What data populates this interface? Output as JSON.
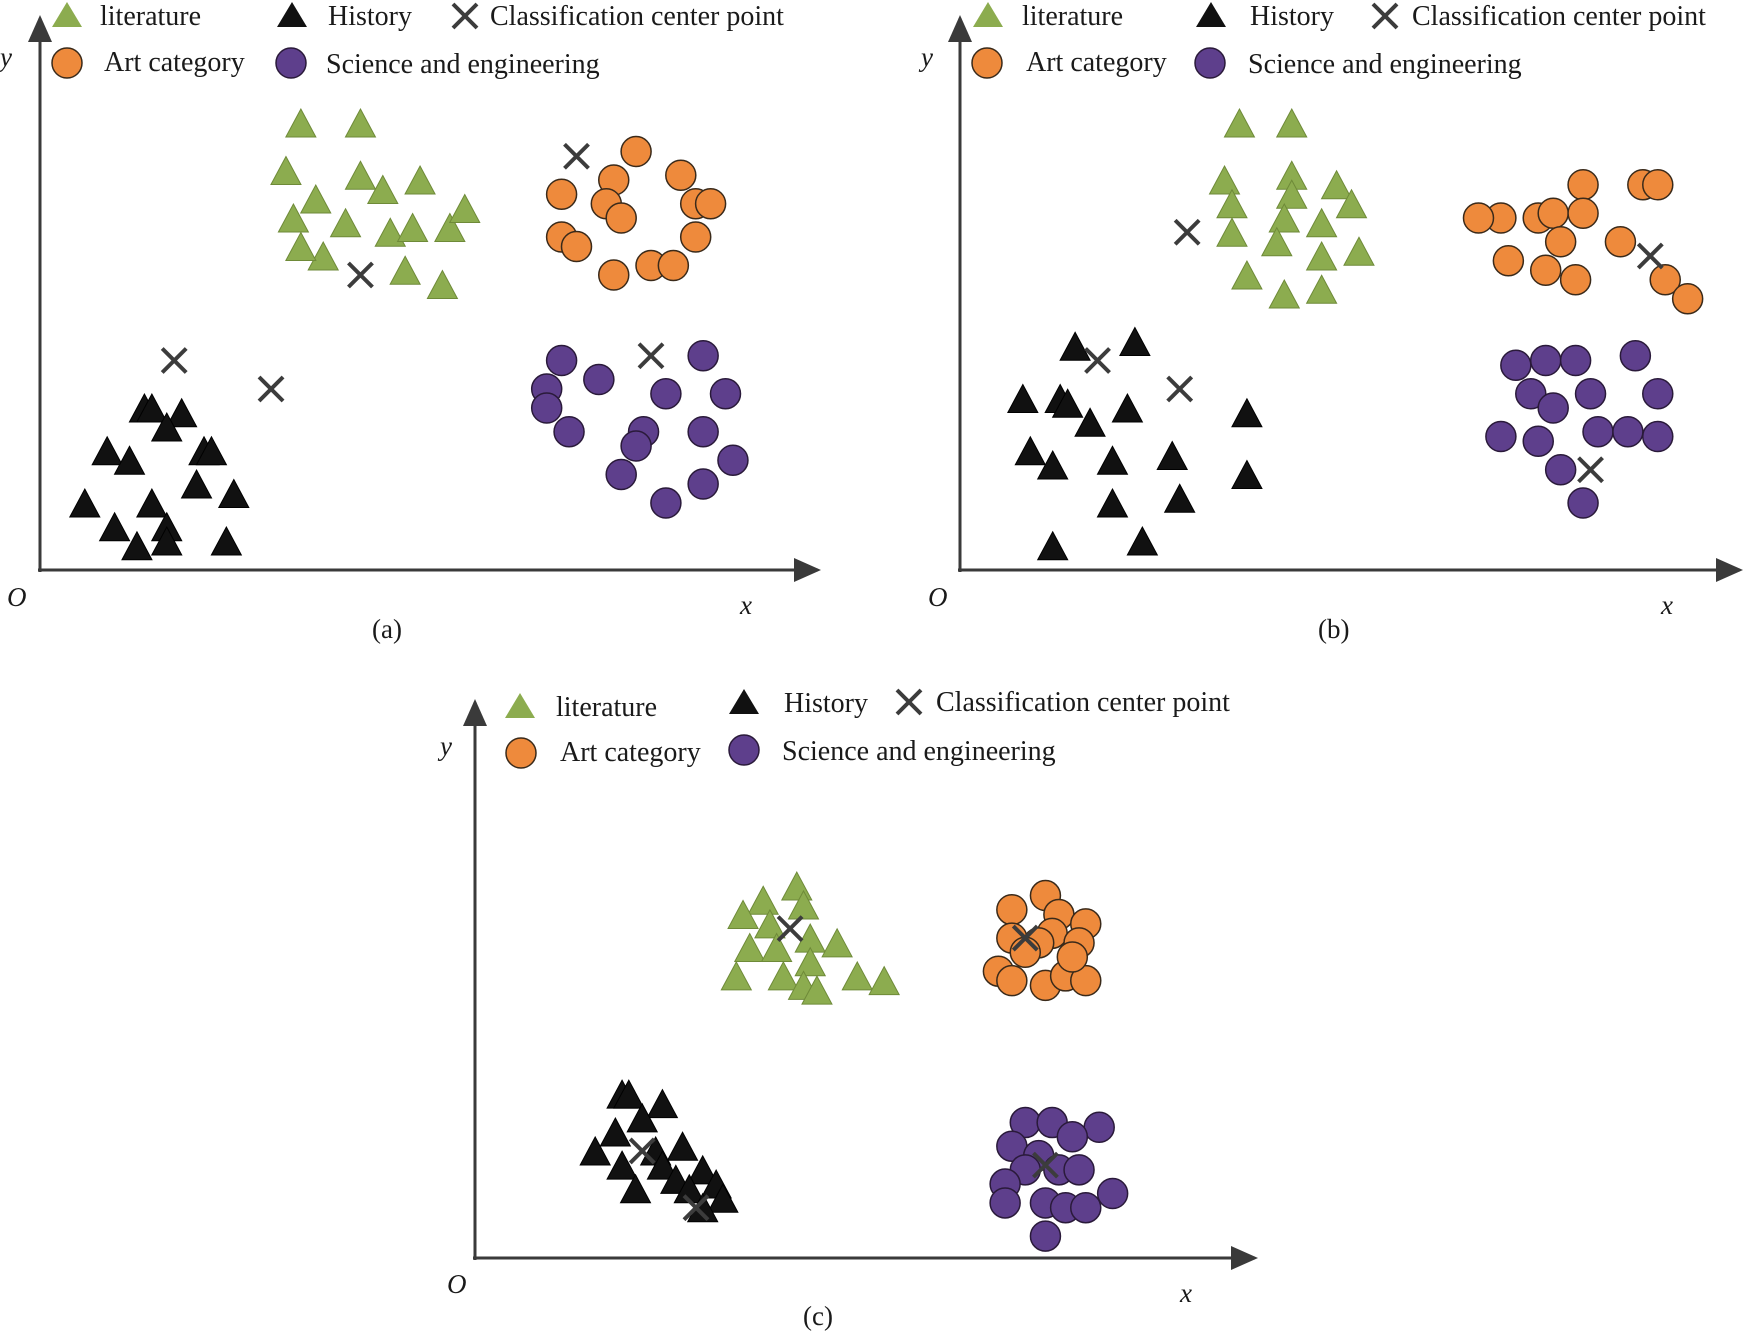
{
  "legend": {
    "literature": "literature",
    "history": "History",
    "center": "Classification center point",
    "art": "Art category",
    "science": "Science and engineering"
  },
  "colors": {
    "literature": "#8cac4f",
    "history": "#111111",
    "art": "#ee8a3c",
    "science": "#5e3f8c",
    "center": "#3c3c3c",
    "axis": "#3a3a3a"
  },
  "chart_data": [
    {
      "type": "scatter",
      "caption": "(a)",
      "xlabel": "x",
      "ylabel": "y",
      "origin_label": "O",
      "xlim": [
        0,
        100
      ],
      "ylim": [
        0,
        100
      ],
      "series": [
        {
          "name": "literature",
          "marker": "triangle",
          "points": [
            [
              33,
              92
            ],
            [
              41,
              92
            ],
            [
              31,
              82
            ],
            [
              41,
              81
            ],
            [
              35,
              76
            ],
            [
              44,
              78
            ],
            [
              49,
              80
            ],
            [
              32,
              72
            ],
            [
              39,
              71
            ],
            [
              45,
              69
            ],
            [
              48,
              70
            ],
            [
              53,
              70
            ],
            [
              55,
              74
            ],
            [
              36,
              64
            ],
            [
              47,
              61
            ],
            [
              52,
              58
            ],
            [
              33,
              66
            ]
          ]
        },
        {
          "name": "Art category",
          "marker": "circle",
          "points": [
            [
              78,
              86
            ],
            [
              84,
              81
            ],
            [
              75,
              80
            ],
            [
              68,
              77
            ],
            [
              74,
              75
            ],
            [
              76,
              72
            ],
            [
              86,
              75
            ],
            [
              88,
              75
            ],
            [
              68,
              68
            ],
            [
              70,
              66
            ],
            [
              86,
              68
            ],
            [
              75,
              60
            ],
            [
              80,
              62
            ],
            [
              83,
              62
            ]
          ]
        },
        {
          "name": "History",
          "marker": "triangle",
          "points": [
            [
              12,
              32
            ],
            [
              13,
              32
            ],
            [
              17,
              31
            ],
            [
              15,
              28
            ],
            [
              7,
              23
            ],
            [
              10,
              21
            ],
            [
              20,
              23
            ],
            [
              21,
              23
            ],
            [
              19,
              16
            ],
            [
              4,
              12
            ],
            [
              13,
              12
            ],
            [
              24,
              14
            ],
            [
              8,
              7
            ],
            [
              15,
              7
            ],
            [
              11,
              3
            ],
            [
              15,
              4
            ],
            [
              23,
              4
            ]
          ]
        },
        {
          "name": "Science and engineering",
          "marker": "circle",
          "points": [
            [
              68,
              42
            ],
            [
              73,
              38
            ],
            [
              87,
              43
            ],
            [
              66,
              36
            ],
            [
              82,
              35
            ],
            [
              90,
              35
            ],
            [
              66,
              32
            ],
            [
              69,
              27
            ],
            [
              79,
              27
            ],
            [
              87,
              27
            ],
            [
              78,
              24
            ],
            [
              91,
              21
            ],
            [
              76,
              18
            ],
            [
              87,
              16
            ],
            [
              82,
              12
            ]
          ]
        }
      ],
      "centers": [
        [
          70,
          85
        ],
        [
          41,
          60
        ],
        [
          16,
          42
        ],
        [
          29,
          36
        ],
        [
          80,
          43
        ]
      ]
    },
    {
      "type": "scatter",
      "caption": "(b)",
      "xlabel": "x",
      "ylabel": "y",
      "origin_label": "O",
      "xlim": [
        0,
        100
      ],
      "ylim": [
        0,
        100
      ],
      "series": [
        {
          "name": "literature",
          "marker": "triangle",
          "points": [
            [
              35,
              92
            ],
            [
              42,
              92
            ],
            [
              33,
              80
            ],
            [
              42,
              81
            ],
            [
              48,
              79
            ],
            [
              34,
              75
            ],
            [
              42,
              77
            ],
            [
              50,
              75
            ],
            [
              41,
              72
            ],
            [
              46,
              71
            ],
            [
              34,
              69
            ],
            [
              40,
              67
            ],
            [
              46,
              64
            ],
            [
              51,
              65
            ],
            [
              36,
              60
            ],
            [
              46,
              57
            ],
            [
              41,
              56
            ]
          ]
        },
        {
          "name": "Art category",
          "marker": "circle",
          "points": [
            [
              81,
              79
            ],
            [
              89,
              79
            ],
            [
              91,
              79
            ],
            [
              70,
              72
            ],
            [
              75,
              72
            ],
            [
              77,
              73
            ],
            [
              81,
              73
            ],
            [
              67,
              72
            ],
            [
              78,
              67
            ],
            [
              86,
              67
            ],
            [
              71,
              63
            ],
            [
              76,
              61
            ],
            [
              80,
              59
            ],
            [
              92,
              59
            ],
            [
              95,
              55
            ]
          ]
        },
        {
          "name": "History",
          "marker": "triangle",
          "points": [
            [
              13,
              45
            ],
            [
              21,
              46
            ],
            [
              6,
              34
            ],
            [
              11,
              34
            ],
            [
              12,
              33
            ],
            [
              20,
              32
            ],
            [
              15,
              29
            ],
            [
              36,
              31
            ],
            [
              7,
              23
            ],
            [
              10,
              20
            ],
            [
              18,
              21
            ],
            [
              26,
              22
            ],
            [
              36,
              18
            ],
            [
              18,
              12
            ],
            [
              27,
              13
            ],
            [
              10,
              3
            ],
            [
              22,
              4
            ]
          ]
        },
        {
          "name": "Science and engineering",
          "marker": "circle",
          "points": [
            [
              72,
              41
            ],
            [
              76,
              42
            ],
            [
              80,
              42
            ],
            [
              88,
              43
            ],
            [
              74,
              35
            ],
            [
              82,
              35
            ],
            [
              91,
              35
            ],
            [
              77,
              32
            ],
            [
              70,
              26
            ],
            [
              75,
              25
            ],
            [
              83,
              27
            ],
            [
              87,
              27
            ],
            [
              91,
              26
            ],
            [
              78,
              19
            ],
            [
              81,
              12
            ]
          ]
        }
      ],
      "centers": [
        [
          28,
          69
        ],
        [
          90,
          64
        ],
        [
          16,
          42
        ],
        [
          27,
          36
        ],
        [
          82,
          19
        ]
      ]
    },
    {
      "type": "scatter",
      "caption": "(c)",
      "xlabel": "x",
      "ylabel": "y",
      "origin_label": "O",
      "xlim": [
        0,
        100
      ],
      "ylim": [
        0,
        100
      ],
      "series": [
        {
          "name": "literature",
          "marker": "triangle",
          "points": [
            [
              40,
              78
            ],
            [
              35,
              75
            ],
            [
              41,
              74
            ],
            [
              32,
              72
            ],
            [
              36,
              70
            ],
            [
              42,
              67
            ],
            [
              46,
              66
            ],
            [
              33,
              65
            ],
            [
              37,
              65
            ],
            [
              42,
              62
            ],
            [
              31,
              59
            ],
            [
              38,
              59
            ],
            [
              41,
              57
            ],
            [
              43,
              56
            ],
            [
              49,
              59
            ],
            [
              53,
              58
            ]
          ]
        },
        {
          "name": "Art category",
          "marker": "circle",
          "points": [
            [
              77,
              76
            ],
            [
              72,
              73
            ],
            [
              79,
              72
            ],
            [
              78,
              68
            ],
            [
              83,
              70
            ],
            [
              72,
              67
            ],
            [
              76,
              66
            ],
            [
              82,
              66
            ],
            [
              70,
              60
            ],
            [
              72,
              58
            ],
            [
              77,
              57
            ],
            [
              80,
              59
            ],
            [
              83,
              58
            ],
            [
              74,
              64
            ],
            [
              81,
              63
            ]
          ]
        },
        {
          "name": "History",
          "marker": "triangle",
          "points": [
            [
              14,
              34
            ],
            [
              15,
              34
            ],
            [
              20,
              32
            ],
            [
              17,
              29
            ],
            [
              13,
              26
            ],
            [
              10,
              22
            ],
            [
              19,
              22
            ],
            [
              23,
              23
            ],
            [
              14,
              19
            ],
            [
              20,
              19
            ],
            [
              26,
              18
            ],
            [
              22,
              16
            ],
            [
              16,
              14
            ],
            [
              28,
              15
            ],
            [
              29,
              12
            ],
            [
              24,
              14
            ],
            [
              26,
              10
            ]
          ]
        },
        {
          "name": "Science and engineering",
          "marker": "circle",
          "points": [
            [
              74,
              28
            ],
            [
              78,
              28
            ],
            [
              85,
              27
            ],
            [
              81,
              25
            ],
            [
              72,
              23
            ],
            [
              76,
              21
            ],
            [
              79,
              18
            ],
            [
              82,
              18
            ],
            [
              74,
              18
            ],
            [
              71,
              15
            ],
            [
              87,
              13
            ],
            [
              71,
              11
            ],
            [
              77,
              11
            ],
            [
              80,
              10
            ],
            [
              83,
              10
            ],
            [
              77,
              4
            ]
          ]
        }
      ],
      "centers": [
        [
          39,
          69
        ],
        [
          74,
          67
        ],
        [
          17,
          22
        ],
        [
          77,
          19
        ],
        [
          25,
          10
        ]
      ]
    }
  ]
}
